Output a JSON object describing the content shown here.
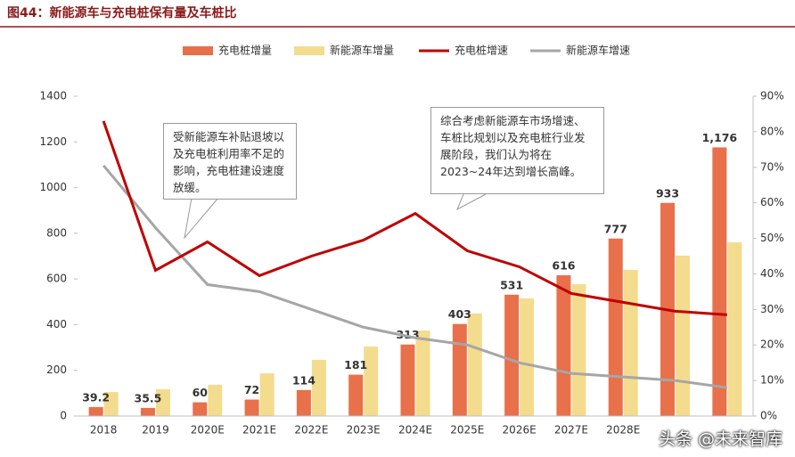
{
  "chart_data": {
    "type": "combo",
    "title": "图44：新能源车与充电桩保有量及车桩比",
    "categories": [
      "2018",
      "2019",
      "2020E",
      "2021E",
      "2022E",
      "2023E",
      "2024E",
      "2025E",
      "2026E",
      "2027E",
      "2028E",
      null,
      null
    ],
    "series": [
      {
        "name": "充电桩增量",
        "type": "bar",
        "color": "#e8704a",
        "values": [
          39.2,
          35.5,
          60,
          72,
          114,
          181,
          313,
          403,
          531,
          616,
          777,
          933,
          1176
        ],
        "value_labels": [
          "39.2",
          "35.5",
          "60",
          "72",
          "114",
          "181",
          "313",
          "403",
          "531",
          "616",
          "777",
          "933",
          "1,176"
        ]
      },
      {
        "name": "新能源车增量",
        "type": "bar",
        "color": "#f3dc8e",
        "values": [
          105,
          117,
          137,
          187,
          246,
          304,
          374,
          449,
          515,
          577,
          640,
          702,
          760
        ]
      },
      {
        "name": "充电桩增速",
        "type": "line",
        "axis": "y2",
        "color": "#c00000",
        "values": [
          83,
          41,
          49,
          39.5,
          45,
          49.5,
          57,
          46.5,
          42,
          34.5,
          32,
          29.5,
          28.5
        ]
      },
      {
        "name": "新能源车增速",
        "type": "line",
        "axis": "y2",
        "color": "#a6a6a6",
        "values": [
          70.5,
          53,
          37,
          35,
          30,
          25,
          22,
          20,
          15,
          12,
          11,
          10,
          8
        ]
      }
    ],
    "ylim": [
      0,
      1400
    ],
    "yticks": [
      0,
      200,
      400,
      600,
      800,
      1000,
      1200,
      1400
    ],
    "y2lim": [
      0,
      90
    ],
    "y2ticks": [
      {
        "value": 0,
        "label": "0%"
      },
      {
        "value": 10,
        "label": "10%"
      },
      {
        "value": 20,
        "label": "20%"
      },
      {
        "value": 30,
        "label": "30%"
      },
      {
        "value": 40,
        "label": "40%"
      },
      {
        "value": 50,
        "label": "50%"
      },
      {
        "value": 60,
        "label": "60%"
      },
      {
        "value": 70,
        "label": "70%"
      },
      {
        "value": 80,
        "label": "80%"
      },
      {
        "value": 90,
        "label": "90%"
      }
    ],
    "grid": false,
    "legend": "top",
    "annotations": [
      {
        "text": "受新能源车补贴退坡以及充电桩利用率不足的影响，充电桩建设速度放缓。"
      },
      {
        "text": "综合考虑新能源车市场增速、车桩比规划以及充电桩行业发展阶段，我们认为将在2023~24年达到增长高峰。"
      }
    ],
    "watermark": "头条 @未来智库"
  }
}
